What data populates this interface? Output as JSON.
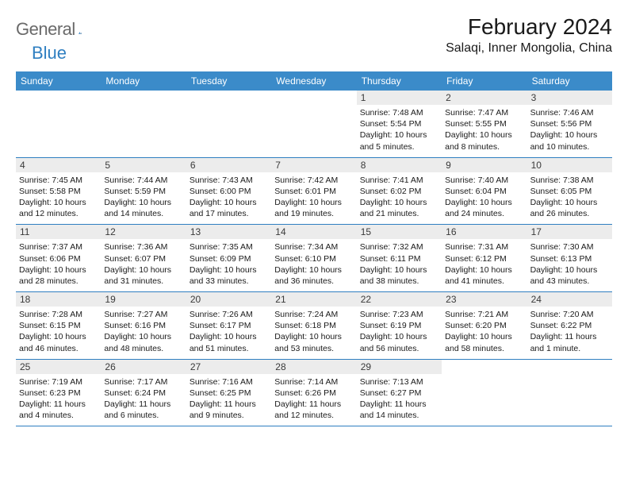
{
  "logo": {
    "general": "General",
    "blue": "Blue"
  },
  "title": "February 2024",
  "location": "Salaqi, Inner Mongolia, China",
  "colors": {
    "header_bg": "#3b8bc9",
    "accent": "#2f7fc1",
    "daynum_bg": "#ececec",
    "text": "#1a1a1a",
    "logo_gray": "#6a6a6a"
  },
  "fonts": {
    "title_size": 28,
    "location_size": 16,
    "header_size": 12,
    "body_size": 10.5
  },
  "day_headers": [
    "Sunday",
    "Monday",
    "Tuesday",
    "Wednesday",
    "Thursday",
    "Friday",
    "Saturday"
  ],
  "weeks": [
    [
      null,
      null,
      null,
      null,
      {
        "n": "1",
        "sr": "7:48 AM",
        "ss": "5:54 PM",
        "dl": "10 hours and 5 minutes."
      },
      {
        "n": "2",
        "sr": "7:47 AM",
        "ss": "5:55 PM",
        "dl": "10 hours and 8 minutes."
      },
      {
        "n": "3",
        "sr": "7:46 AM",
        "ss": "5:56 PM",
        "dl": "10 hours and 10 minutes."
      }
    ],
    [
      {
        "n": "4",
        "sr": "7:45 AM",
        "ss": "5:58 PM",
        "dl": "10 hours and 12 minutes."
      },
      {
        "n": "5",
        "sr": "7:44 AM",
        "ss": "5:59 PM",
        "dl": "10 hours and 14 minutes."
      },
      {
        "n": "6",
        "sr": "7:43 AM",
        "ss": "6:00 PM",
        "dl": "10 hours and 17 minutes."
      },
      {
        "n": "7",
        "sr": "7:42 AM",
        "ss": "6:01 PM",
        "dl": "10 hours and 19 minutes."
      },
      {
        "n": "8",
        "sr": "7:41 AM",
        "ss": "6:02 PM",
        "dl": "10 hours and 21 minutes."
      },
      {
        "n": "9",
        "sr": "7:40 AM",
        "ss": "6:04 PM",
        "dl": "10 hours and 24 minutes."
      },
      {
        "n": "10",
        "sr": "7:38 AM",
        "ss": "6:05 PM",
        "dl": "10 hours and 26 minutes."
      }
    ],
    [
      {
        "n": "11",
        "sr": "7:37 AM",
        "ss": "6:06 PM",
        "dl": "10 hours and 28 minutes."
      },
      {
        "n": "12",
        "sr": "7:36 AM",
        "ss": "6:07 PM",
        "dl": "10 hours and 31 minutes."
      },
      {
        "n": "13",
        "sr": "7:35 AM",
        "ss": "6:09 PM",
        "dl": "10 hours and 33 minutes."
      },
      {
        "n": "14",
        "sr": "7:34 AM",
        "ss": "6:10 PM",
        "dl": "10 hours and 36 minutes."
      },
      {
        "n": "15",
        "sr": "7:32 AM",
        "ss": "6:11 PM",
        "dl": "10 hours and 38 minutes."
      },
      {
        "n": "16",
        "sr": "7:31 AM",
        "ss": "6:12 PM",
        "dl": "10 hours and 41 minutes."
      },
      {
        "n": "17",
        "sr": "7:30 AM",
        "ss": "6:13 PM",
        "dl": "10 hours and 43 minutes."
      }
    ],
    [
      {
        "n": "18",
        "sr": "7:28 AM",
        "ss": "6:15 PM",
        "dl": "10 hours and 46 minutes."
      },
      {
        "n": "19",
        "sr": "7:27 AM",
        "ss": "6:16 PM",
        "dl": "10 hours and 48 minutes."
      },
      {
        "n": "20",
        "sr": "7:26 AM",
        "ss": "6:17 PM",
        "dl": "10 hours and 51 minutes."
      },
      {
        "n": "21",
        "sr": "7:24 AM",
        "ss": "6:18 PM",
        "dl": "10 hours and 53 minutes."
      },
      {
        "n": "22",
        "sr": "7:23 AM",
        "ss": "6:19 PM",
        "dl": "10 hours and 56 minutes."
      },
      {
        "n": "23",
        "sr": "7:21 AM",
        "ss": "6:20 PM",
        "dl": "10 hours and 58 minutes."
      },
      {
        "n": "24",
        "sr": "7:20 AM",
        "ss": "6:22 PM",
        "dl": "11 hours and 1 minute."
      }
    ],
    [
      {
        "n": "25",
        "sr": "7:19 AM",
        "ss": "6:23 PM",
        "dl": "11 hours and 4 minutes."
      },
      {
        "n": "26",
        "sr": "7:17 AM",
        "ss": "6:24 PM",
        "dl": "11 hours and 6 minutes."
      },
      {
        "n": "27",
        "sr": "7:16 AM",
        "ss": "6:25 PM",
        "dl": "11 hours and 9 minutes."
      },
      {
        "n": "28",
        "sr": "7:14 AM",
        "ss": "6:26 PM",
        "dl": "11 hours and 12 minutes."
      },
      {
        "n": "29",
        "sr": "7:13 AM",
        "ss": "6:27 PM",
        "dl": "11 hours and 14 minutes."
      },
      null,
      null
    ]
  ],
  "labels": {
    "sunrise": "Sunrise:",
    "sunset": "Sunset:",
    "daylight": "Daylight:"
  }
}
